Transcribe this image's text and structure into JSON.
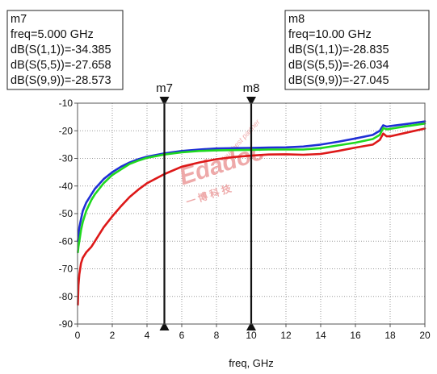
{
  "chart_data": {
    "type": "line",
    "xlabel": "freq, GHz",
    "ylabel": "",
    "xlim": [
      0,
      20
    ],
    "ylim": [
      -90,
      -10
    ],
    "x_ticks": [
      "0",
      "2",
      "4",
      "6",
      "8",
      "10",
      "12",
      "14",
      "16",
      "18",
      "20"
    ],
    "y_ticks": [
      "-10",
      "-20",
      "-30",
      "-40",
      "-50",
      "-60",
      "-70",
      "-80",
      "-90"
    ],
    "grid": true,
    "series": [
      {
        "color": "#1f2fd6",
        "x": [
          0.02,
          0.05,
          0.1,
          0.2,
          0.3,
          0.5,
          0.8,
          1.0,
          1.5,
          2.0,
          2.5,
          3.0,
          3.5,
          4.0,
          5.0,
          6.0,
          7.0,
          8.0,
          9.0,
          10.0,
          11.0,
          12.0,
          13.0,
          14.0,
          15.0,
          16.0,
          17.0,
          17.4,
          17.6,
          17.8,
          18.0,
          19.0,
          20.0
        ],
        "values": [
          -60,
          -58,
          -55,
          -52,
          -49,
          -46,
          -43,
          -41,
          -37.5,
          -35,
          -33,
          -31.5,
          -30.3,
          -29.4,
          -28.2,
          -27.3,
          -26.8,
          -26.4,
          -26.3,
          -26.2,
          -26.1,
          -26.0,
          -25.7,
          -25,
          -24,
          -22.8,
          -21.5,
          -20,
          -18,
          -18.5,
          -18.3,
          -17.5,
          -16.6
        ]
      },
      {
        "color": "#1fd81f",
        "x": [
          0.02,
          0.05,
          0.1,
          0.2,
          0.3,
          0.5,
          0.8,
          1.0,
          1.5,
          2.0,
          2.5,
          3.0,
          3.5,
          4.0,
          5.0,
          6.0,
          7.0,
          8.0,
          9.0,
          10.0,
          11.0,
          12.0,
          13.0,
          14.0,
          15.0,
          16.0,
          17.0,
          17.4,
          17.6,
          17.8,
          18.0,
          19.0,
          20.0
        ],
        "values": [
          -64,
          -62,
          -60,
          -56,
          -53,
          -49,
          -45,
          -43,
          -39,
          -36,
          -34,
          -32,
          -30.8,
          -29.8,
          -28.6,
          -27.8,
          -27.3,
          -27.1,
          -27.0,
          -26.9,
          -26.8,
          -26.8,
          -26.8,
          -26.3,
          -25.3,
          -24.3,
          -23,
          -21.5,
          -19,
          -19.5,
          -19.3,
          -18.3,
          -17.4
        ]
      },
      {
        "color": "#dd1818",
        "x": [
          0.02,
          0.05,
          0.1,
          0.2,
          0.3,
          0.5,
          0.8,
          1.0,
          1.5,
          2.0,
          2.5,
          3.0,
          3.5,
          4.0,
          5.0,
          6.0,
          7.0,
          8.0,
          9.0,
          10.0,
          11.0,
          12.0,
          13.0,
          14.0,
          15.0,
          16.0,
          17.0,
          17.4,
          17.6,
          17.8,
          18.0,
          19.0,
          20.0
        ],
        "values": [
          -83,
          -76,
          -72,
          -68,
          -66,
          -64,
          -62,
          -60,
          -55,
          -51,
          -47.3,
          -44,
          -41.3,
          -39,
          -35.7,
          -33,
          -31.5,
          -30.3,
          -29.5,
          -29.0,
          -28.6,
          -28.5,
          -28.7,
          -28.4,
          -27.3,
          -26.1,
          -25,
          -23.3,
          -21,
          -22,
          -22,
          -20.6,
          -19.2
        ]
      }
    ],
    "markers": [
      {
        "name": "m7",
        "x": 5,
        "lines": [
          "m7",
          "freq=5.000 GHz",
          "dB(S(1,1))=-34.385",
          "dB(S(5,5))=-27.658",
          "dB(S(9,9))=-28.573"
        ]
      },
      {
        "name": "m8",
        "x": 10,
        "lines": [
          "m8",
          "freq=10.00 GHz",
          "dB(S(1,1))=-28.835",
          "dB(S(5,5))=-26.034",
          "dB(S(9,9))=-27.045"
        ]
      }
    ]
  },
  "watermark": {
    "text": "Edadoc",
    "tagline": "Your best partner",
    "chinese": "一 博 科 技",
    "color": "#e8a3a3"
  }
}
